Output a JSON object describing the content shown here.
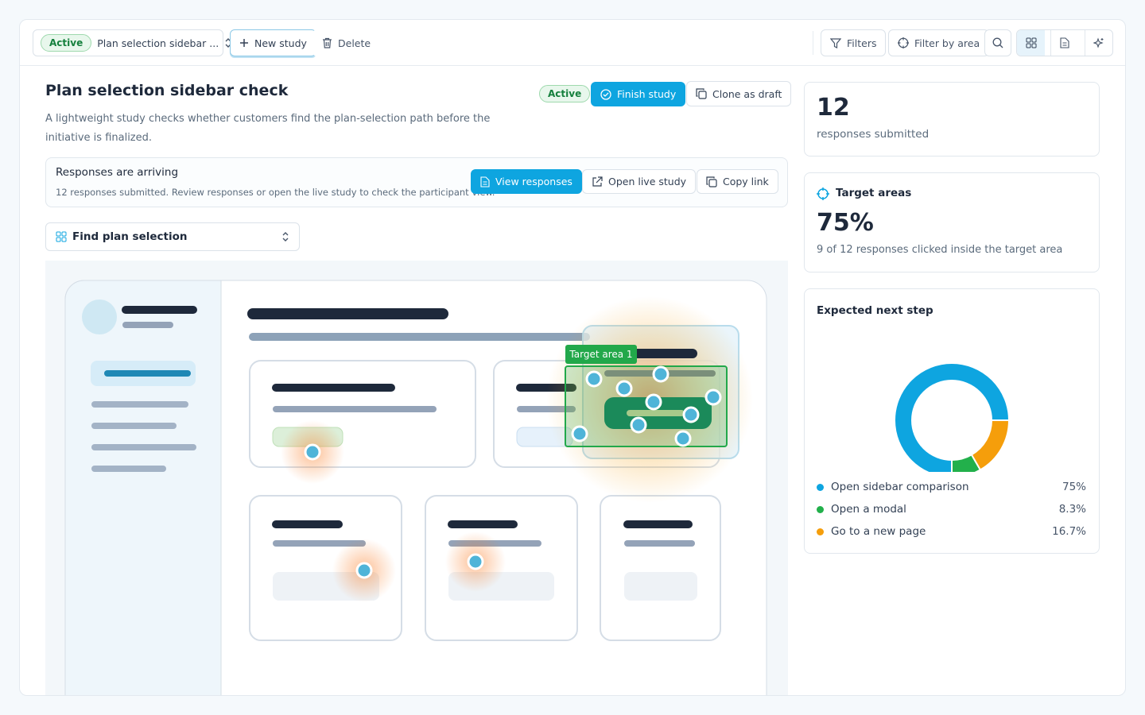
{
  "toolbar": {
    "status": "Active",
    "study_select": "Plan selection sidebar ...",
    "new_study": "New study",
    "delete": "Delete",
    "filters": "Filters",
    "filter_by_area": "Filter by area"
  },
  "study": {
    "title": "Plan selection sidebar check",
    "status": "Active",
    "finish": "Finish study",
    "clone": "Clone as draft",
    "description": "A lightweight study checks whether customers find the plan-selection path before the initiative is finalized."
  },
  "notice": {
    "title": "Responses are arriving",
    "text": "12 responses submitted. Review responses or open the live study to check the participant view.",
    "view": "View responses",
    "open": "Open live study",
    "copy": "Copy link"
  },
  "task_select": "Find plan selection",
  "heatmap": {
    "target_label": "Target area 1"
  },
  "stats": {
    "responses": {
      "value": "12",
      "label": "responses submitted"
    },
    "target": {
      "title": "Target areas",
      "value": "75%",
      "label": "9 of 12 responses clicked inside the target area"
    }
  },
  "chart_data": {
    "type": "donut",
    "title": "Expected next step",
    "categories": [
      "Open sidebar comparison",
      "Open a modal",
      "Go to a new page"
    ],
    "values": [
      75,
      8.3,
      16.7
    ],
    "value_labels": [
      "75%",
      "8.3%",
      "16.7%"
    ],
    "colors": [
      "#0ea5e0",
      "#22b04b",
      "#f59e0b"
    ]
  }
}
